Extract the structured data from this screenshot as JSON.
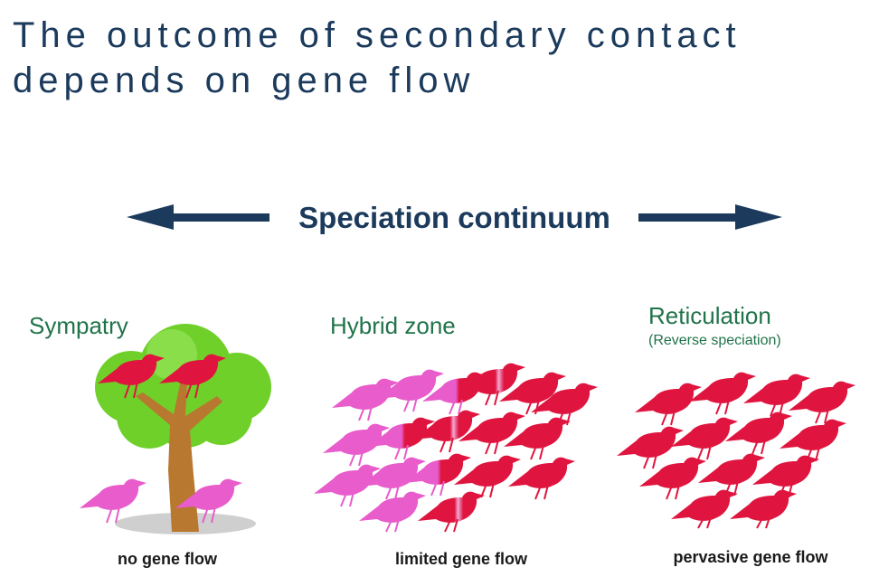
{
  "title": {
    "line1": "The outcome of secondary contact",
    "line2": "depends on gene flow"
  },
  "continuum": {
    "label": "Speciation continuum",
    "color": "#1b3a5c"
  },
  "panels": [
    {
      "heading": "Sympatry",
      "subheading": "",
      "caption": "no gene flow"
    },
    {
      "heading": "Hybrid zone",
      "subheading": "",
      "caption": "limited gene flow"
    },
    {
      "heading": "Reticulation",
      "subheading": "(Reverse speciation)",
      "caption": "pervasive gene flow"
    }
  ],
  "colors": {
    "red_bird": "#e0153f",
    "pink_bird": "#e85ccb",
    "foliage": "#6fd02a",
    "trunk": "#b8782f",
    "heading_green": "#21734a"
  }
}
